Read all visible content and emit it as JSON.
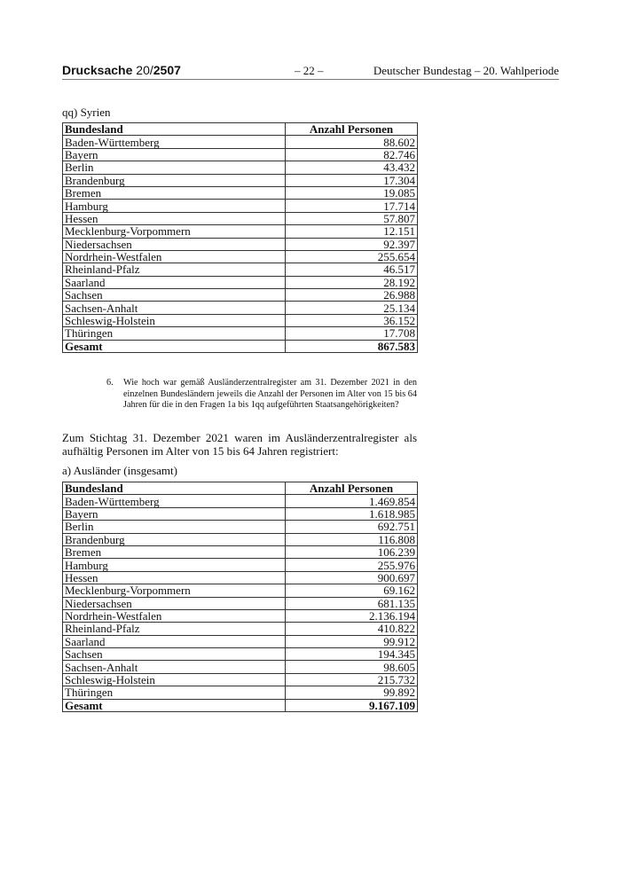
{
  "header": {
    "left_bold": "Drucksache",
    "left_num": "20/",
    "left_bold2": "2507",
    "center": "– 22 –",
    "right": "Deutscher Bundestag – 20. Wahlperiode"
  },
  "section_qq": {
    "label": "qq)  Syrien",
    "columns": [
      "Bundesland",
      "Anzahl Personen"
    ],
    "rows": [
      [
        "Baden-Württemberg",
        "88.602"
      ],
      [
        "Bayern",
        "82.746"
      ],
      [
        "Berlin",
        "43.432"
      ],
      [
        "Brandenburg",
        "17.304"
      ],
      [
        "Bremen",
        "19.085"
      ],
      [
        "Hamburg",
        "17.714"
      ],
      [
        "Hessen",
        "57.807"
      ],
      [
        "Mecklenburg-Vorpommern",
        "12.151"
      ],
      [
        "Niedersachsen",
        "92.397"
      ],
      [
        "Nordrhein-Westfalen",
        "255.654"
      ],
      [
        "Rheinland-Pfalz",
        "46.517"
      ],
      [
        "Saarland",
        "28.192"
      ],
      [
        "Sachsen",
        "26.988"
      ],
      [
        "Sachsen-Anhalt",
        "25.134"
      ],
      [
        "Schleswig-Holstein",
        "36.152"
      ],
      [
        "Thüringen",
        "17.708"
      ]
    ],
    "total": [
      "Gesamt",
      "867.583"
    ]
  },
  "question": {
    "number": "6.",
    "text": "Wie hoch war gemäß Ausländerzentralregister am 31. Dezember 2021 in den einzelnen Bundesländern jeweils die Anzahl der Personen im Alter von 15 bis 64 Jahren für die in den Fragen 1a bis 1qq aufgeführten Staatsangehörigkeiten?"
  },
  "answer": "Zum Stichtag 31. Dezember 2021 waren im Ausländerzentralregister als aufhältig Personen im Alter von 15 bis 64 Jahren registriert:",
  "section_a": {
    "label": "a)  Ausländer (insgesamt)",
    "columns": [
      "Bundesland",
      "Anzahl Personen"
    ],
    "rows": [
      [
        "Baden-Württemberg",
        "1.469.854"
      ],
      [
        "Bayern",
        "1.618.985"
      ],
      [
        "Berlin",
        "692.751"
      ],
      [
        "Brandenburg",
        "116.808"
      ],
      [
        "Bremen",
        "106.239"
      ],
      [
        "Hamburg",
        "255.976"
      ],
      [
        "Hessen",
        "900.697"
      ],
      [
        "Mecklenburg-Vorpommern",
        "69.162"
      ],
      [
        "Niedersachsen",
        "681.135"
      ],
      [
        "Nordrhein-Westfalen",
        "2.136.194"
      ],
      [
        "Rheinland-Pfalz",
        "410.822"
      ],
      [
        "Saarland",
        "99.912"
      ],
      [
        "Sachsen",
        "194.345"
      ],
      [
        "Sachsen-Anhalt",
        "98.605"
      ],
      [
        "Schleswig-Holstein",
        "215.732"
      ],
      [
        "Thüringen",
        "99.892"
      ]
    ],
    "total": [
      "Gesamt",
      "9.167.109"
    ]
  }
}
